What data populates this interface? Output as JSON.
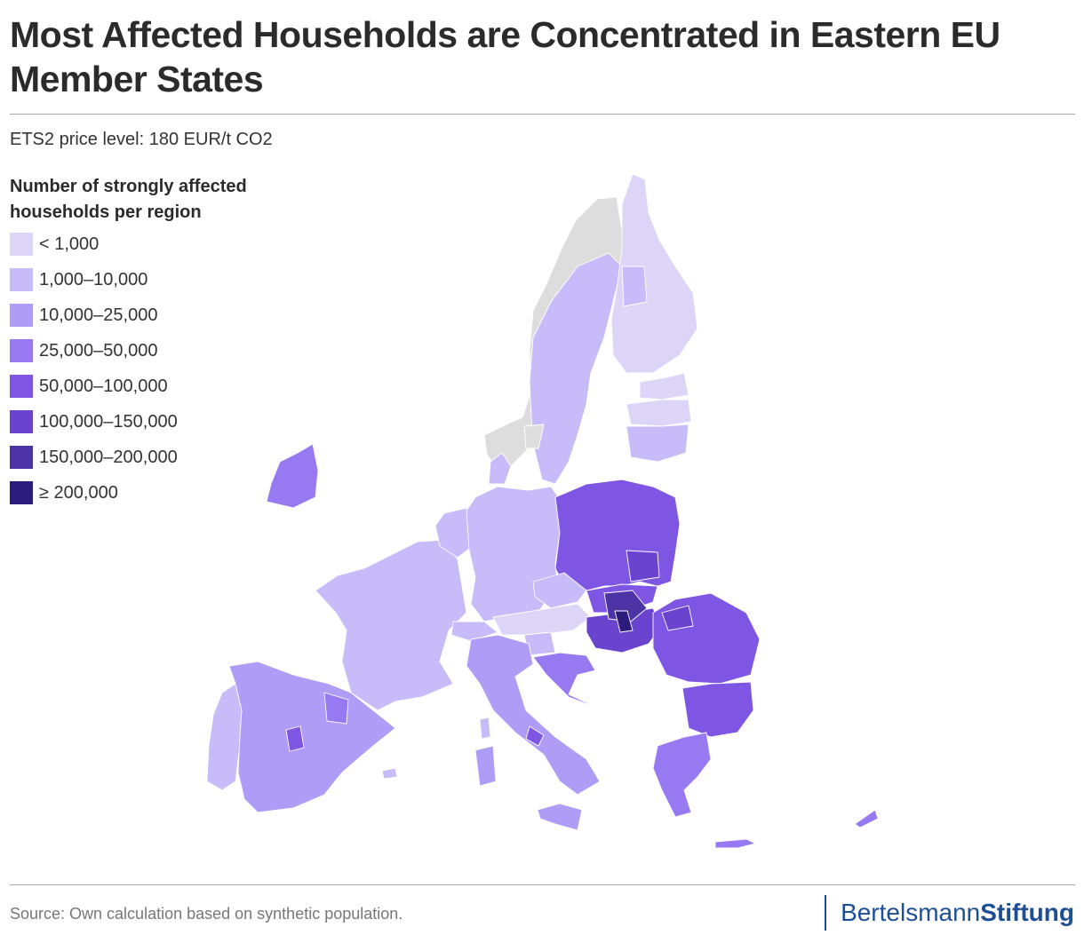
{
  "title": "Most Affected Households are Concentrated in Eastern EU Member States",
  "subtitle": "ETS2 price level: 180 EUR/t CO2",
  "legend": {
    "title": "Number of strongly affected households per region",
    "items": [
      {
        "label": "< 1,000",
        "color": "#ddd5f8"
      },
      {
        "label": "1,000–10,000",
        "color": "#c7bbfa"
      },
      {
        "label": "10,000–25,000",
        "color": "#ae9cf6"
      },
      {
        "label": "25,000–50,000",
        "color": "#977af1"
      },
      {
        "label": "50,000–100,000",
        "color": "#7e56e3"
      },
      {
        "label": "100,000–150,000",
        "color": "#6a43cf"
      },
      {
        "label": "150,000–200,000",
        "color": "#4c33a6"
      },
      {
        "label": "≥ 200,000",
        "color": "#2c1d7c"
      }
    ]
  },
  "no_data_color": "#dddddd",
  "source": "Source: Own calculation based on synthetic population.",
  "brand": {
    "part1": "Bertelsmann",
    "part2": "Stiftung",
    "color": "#1e4f96"
  }
}
